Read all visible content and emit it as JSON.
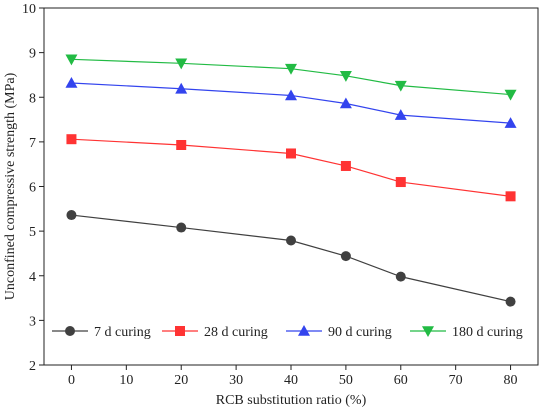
{
  "chart_data": {
    "type": "line",
    "xlabel": "RCB substitution ratio (%)",
    "ylabel": "Unconfined compressive strength (MPa)",
    "xlim": [
      -5,
      85
    ],
    "ylim": [
      2,
      10
    ],
    "x_ticks": [
      0,
      10,
      20,
      30,
      40,
      50,
      60,
      70,
      80
    ],
    "y_ticks": [
      2,
      3,
      4,
      5,
      6,
      7,
      8,
      9,
      10
    ],
    "x": [
      0,
      20,
      40,
      50,
      60,
      80
    ],
    "grid": false,
    "legend_position": "bottom",
    "series": [
      {
        "name": "7 d curing",
        "color": "#404040",
        "marker": "circle",
        "values": [
          5.36,
          5.08,
          4.79,
          4.44,
          3.98,
          3.42
        ]
      },
      {
        "name": "28 d curing",
        "color": "#ff3333",
        "marker": "square",
        "values": [
          7.06,
          6.93,
          6.74,
          6.46,
          6.1,
          5.78
        ]
      },
      {
        "name": "90 d curing",
        "color": "#3344ee",
        "marker": "triangle-up",
        "values": [
          8.32,
          8.19,
          8.04,
          7.86,
          7.6,
          7.42
        ]
      },
      {
        "name": "180 d curing",
        "color": "#22bb44",
        "marker": "triangle-down",
        "values": [
          8.85,
          8.76,
          8.64,
          8.48,
          8.26,
          8.06
        ]
      }
    ]
  }
}
